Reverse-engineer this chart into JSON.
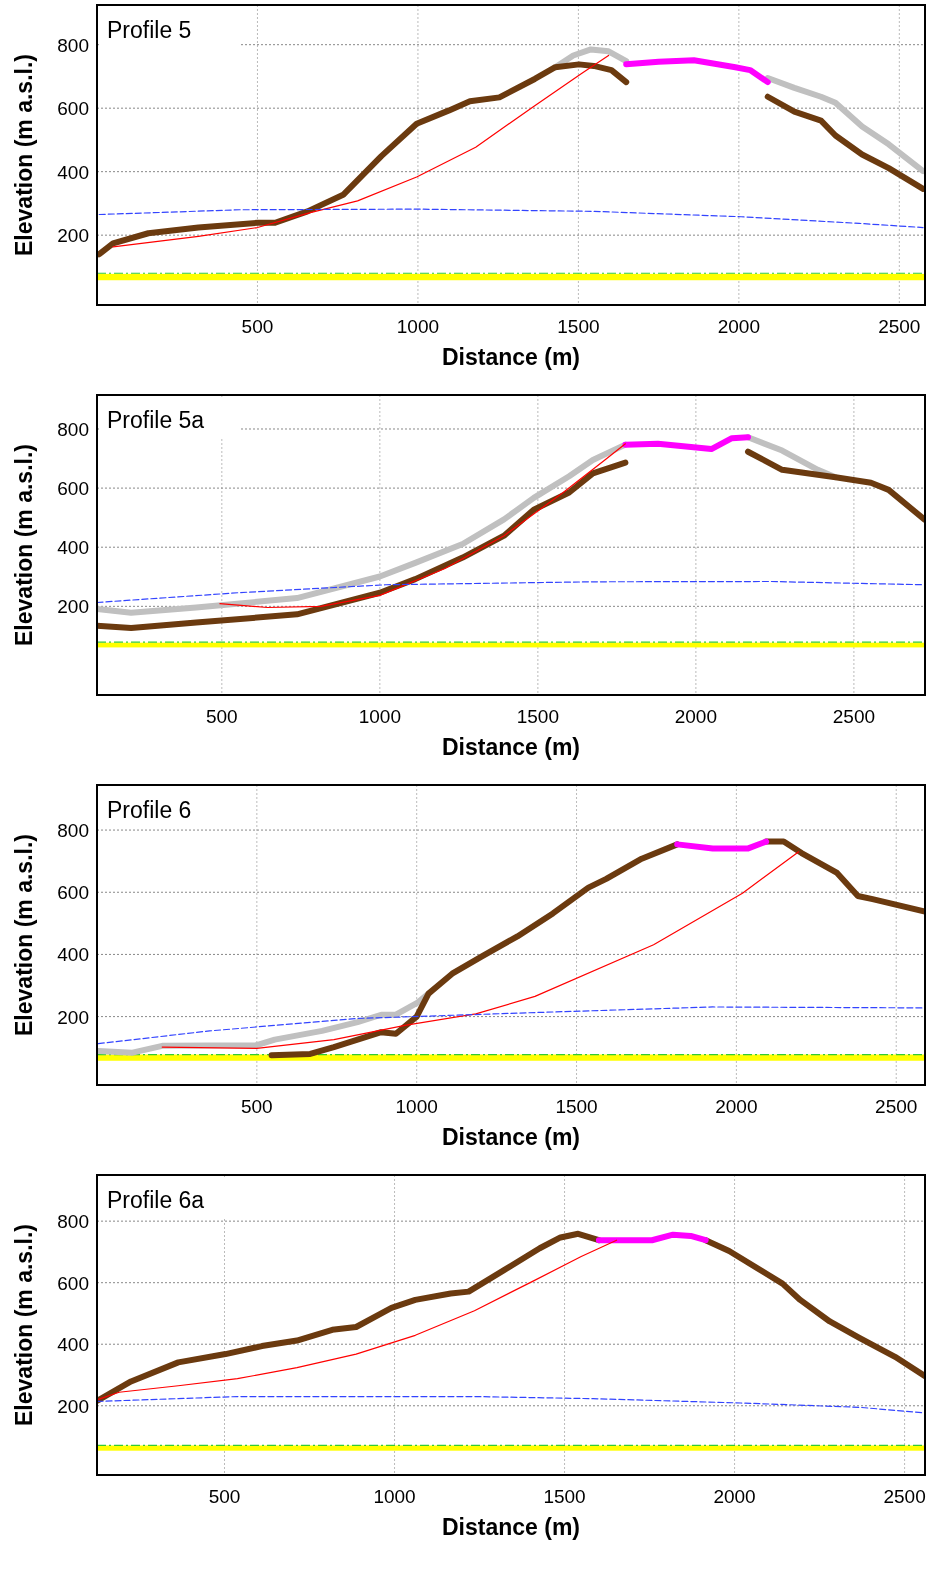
{
  "chart_data": [
    {
      "type": "line",
      "title": "Profile 5",
      "xlabel": "Distance (m)",
      "ylabel": "Elevation (m a.s.l.)",
      "xlim": [
        0,
        2580
      ],
      "ylim": [
        -20,
        925
      ],
      "xticks": [
        500,
        1000,
        1500,
        2000,
        2500
      ],
      "yticks": [
        200,
        400,
        600,
        800
      ],
      "grid": true,
      "marker": "none",
      "bands": [
        {
          "axis": "y",
          "from": 58,
          "to": 78,
          "color": "#ffff00"
        }
      ],
      "ref_lines": [
        {
          "axis": "y",
          "value": 80,
          "color": "#33cc33",
          "line_style": "dashed"
        }
      ],
      "series": [
        {
          "color": "#c0c0c0",
          "x": [
            1428,
            1484,
            1539,
            1594,
            1649,
            null,
            2090,
            2173,
            2256,
            2301,
            2384,
            2467,
            2574
          ],
          "values": [
            729,
            766,
            785,
            779,
            748,
            null,
            695,
            664,
            636,
            617,
            542,
            486,
            402
          ]
        },
        {
          "color": "#6b3a0f",
          "x": [
            7,
            50,
            160,
            316,
            500,
            555,
            656,
            767,
            886,
            996,
            1097,
            1162,
            1254,
            1364,
            1428,
            1502,
            1548,
            1603,
            1649,
            null,
            2090,
            2173,
            2256,
            2301,
            2384,
            2467,
            2574
          ],
          "values": [
            140,
            174,
            206,
            224,
            239,
            239,
            275,
            327,
            449,
            551,
            593,
            622,
            634,
            692,
            729,
            738,
            733,
            720,
            682,
            null,
            636,
            589,
            561,
            514,
            454,
            411,
            346
          ]
        },
        {
          "color": "#ff00ff",
          "x": [
            1649,
            1750,
            1860,
            1989,
            2035,
            2090
          ],
          "values": [
            738,
            746,
            751,
            729,
            720,
            682
          ]
        },
        {
          "color": "#ff0000",
          "x": [
            50,
            316,
            500,
            665,
            812,
            996,
            1180,
            1364,
            1511,
            1594
          ],
          "values": [
            163,
            196,
            224,
            271,
            308,
            383,
            477,
            608,
            710,
            766
          ]
        },
        {
          "color": "#3344ff",
          "line_style": "dashed",
          "x": [
            7,
            445,
            996,
            1548,
            2007,
            2375,
            2574
          ],
          "values": [
            265,
            280,
            282,
            275,
            258,
            237,
            224
          ]
        }
      ]
    },
    {
      "type": "line",
      "title": "Profile 5a",
      "xlabel": "Distance (m)",
      "ylabel": "Elevation (m a.s.l.)",
      "xlim": [
        105,
        2725
      ],
      "ylim": [
        -100,
        915
      ],
      "xticks": [
        500,
        1000,
        1500,
        2000,
        2500
      ],
      "yticks": [
        200,
        400,
        600,
        800
      ],
      "grid": true,
      "marker": "none",
      "bands": [
        {
          "axis": "y",
          "from": 61,
          "to": 77,
          "color": "#ffff00"
        }
      ],
      "ref_lines": [
        {
          "axis": "y",
          "value": 79,
          "color": "#33cc33",
          "line_style": "dashed"
        }
      ],
      "series": [
        {
          "color": "#c0c0c0",
          "x": [
            105,
            213,
            419,
            738,
            1000,
            1112,
            1262,
            1393,
            1487,
            1599,
            1674,
            1777,
            null,
            2165,
            2273,
            2386,
            2442
          ],
          "values": [
            191,
            178,
            196,
            228,
            301,
            347,
            411,
            494,
            567,
            640,
            695,
            747,
            null,
            772,
            727,
            662,
            637
          ]
        },
        {
          "color": "#6b3a0f",
          "x": [
            105,
            213,
            419,
            738,
            1000,
            1112,
            1262,
            1393,
            1487,
            1599,
            1674,
            1777,
            null,
            2165,
            2273,
            2442,
            2554,
            2610,
            2723
          ],
          "values": [
            134,
            127,
            145,
            173,
            246,
            292,
            365,
            439,
            527,
            585,
            650,
            686,
            null,
            723,
            662,
            637,
            618,
            594,
            494
          ]
        },
        {
          "color": "#ff00ff",
          "x": [
            1777,
            1880,
            2049,
            2114,
            2165
          ],
          "values": [
            747,
            750,
            732,
            769,
            772
          ]
        },
        {
          "color": "#ff0000",
          "x": [
            494,
            644,
            813,
            1000,
            1206,
            1393,
            1580,
            1712,
            1777
          ],
          "values": [
            209,
            196,
            200,
            237,
            328,
            439,
            585,
            695,
            750
          ]
        },
        {
          "color": "#3344ff",
          "line_style": "dashed",
          "x": [
            105,
            551,
            1019,
            1674,
            2236,
            2723
          ],
          "values": [
            213,
            246,
            273,
            283,
            284,
            273
          ]
        }
      ]
    },
    {
      "type": "line",
      "title": "Profile 6",
      "xlabel": "Distance (m)",
      "ylabel": "Elevation (m a.s.l.)",
      "xlim": [
        0,
        2590
      ],
      "ylim": [
        -20,
        945
      ],
      "xticks": [
        500,
        1000,
        1500,
        2000,
        2500
      ],
      "yticks": [
        200,
        400,
        600,
        800
      ],
      "grid": true,
      "marker": "none",
      "bands": [
        {
          "axis": "y",
          "from": 58,
          "to": 78,
          "color": "#ffff00"
        }
      ],
      "ref_lines": [
        {
          "axis": "y",
          "value": 78,
          "color": "#33cc33",
          "line_style": "dashed"
        }
      ],
      "series": [
        {
          "color": "#c0c0c0",
          "x": [
            4,
            111,
            204,
            500,
            556,
            704,
            815,
            889,
            935,
            1000,
            1037
          ],
          "values": [
            89,
            84,
            106,
            108,
            126,
            154,
            182,
            206,
            206,
            243,
            274
          ]
        },
        {
          "color": "#6b3a0f",
          "x": [
            546,
            667,
            741,
            815,
            889,
            935,
            1000,
            1037,
            1111,
            1204,
            1315,
            1426,
            1537,
            1593,
            1704,
            1815,
            null,
            2093,
            2148,
            2204,
            2315,
            2380,
            2426,
            2590
          ],
          "values": [
            76,
            80,
            102,
            126,
            150,
            145,
            200,
            274,
            338,
            394,
            458,
            532,
            615,
            643,
            708,
            754,
            null,
            763,
            763,
            726,
            662,
            588,
            578,
            538
          ]
        },
        {
          "color": "#ff00ff",
          "x": [
            1815,
            1926,
            2037,
            2093
          ],
          "values": [
            754,
            741,
            741,
            763
          ]
        },
        {
          "color": "#ff0000",
          "x": [
            204,
            500,
            741,
            963,
            1185,
            1370,
            1741,
            2019,
            2195
          ],
          "values": [
            102,
            98,
            126,
            172,
            209,
            265,
            431,
            597,
            730
          ]
        },
        {
          "color": "#3344ff",
          "line_style": "dashed",
          "x": [
            4,
            352,
            815,
            1370,
            1926,
            2590
          ],
          "values": [
            113,
            154,
            194,
            213,
            231,
            228
          ]
        }
      ]
    },
    {
      "type": "line",
      "title": "Profile 6a",
      "xlabel": "Distance (m)",
      "ylabel": "Elevation (m a.s.l.)",
      "xlim": [
        125,
        2560
      ],
      "ylim": [
        -25,
        950
      ],
      "xticks": [
        500,
        1000,
        1500,
        2000,
        2500
      ],
      "yticks": [
        200,
        400,
        600,
        800
      ],
      "grid": true,
      "marker": "none",
      "bands": [
        {
          "axis": "y",
          "from": 54,
          "to": 71,
          "color": "#ffff00"
        }
      ],
      "ref_lines": [
        {
          "axis": "y",
          "value": 71,
          "color": "#33cc33",
          "line_style": "dashed"
        }
      ],
      "series": [
        {
          "color": "#6b3a0f",
          "x": [
            129,
            225,
            364,
            503,
            610,
            713,
            817,
            887,
            991,
            1061,
            1165,
            1218,
            1322,
            1427,
            1488,
            1540,
            1601,
            null,
            1915,
            1984,
            2141,
            2193,
            2280,
            2367,
            2472,
            2559
          ],
          "values": [
            218,
            279,
            341,
            368,
            394,
            412,
            447,
            456,
            518,
            544,
            565,
            571,
            641,
            712,
            747,
            759,
            738,
            null,
            738,
            703,
            597,
            544,
            474,
            421,
            359,
            297
          ]
        },
        {
          "color": "#ff00ff",
          "x": [
            1601,
            1757,
            1819,
            1871,
            1915
          ],
          "values": [
            738,
            738,
            756,
            752,
            738
          ]
        },
        {
          "color": "#ff0000",
          "x": [
            129,
            190,
            364,
            538,
            713,
            887,
            1061,
            1235,
            1409,
            1549,
            1653
          ],
          "values": [
            221,
            244,
            265,
            288,
            324,
            368,
            429,
            509,
            606,
            685,
            738
          ]
        },
        {
          "color": "#3344ff",
          "line_style": "dashed",
          "x": [
            125,
            538,
            1235,
            1584,
            2019,
            2367,
            2559
          ],
          "values": [
            214,
            230,
            230,
            223,
            209,
            195,
            177
          ]
        }
      ]
    }
  ]
}
